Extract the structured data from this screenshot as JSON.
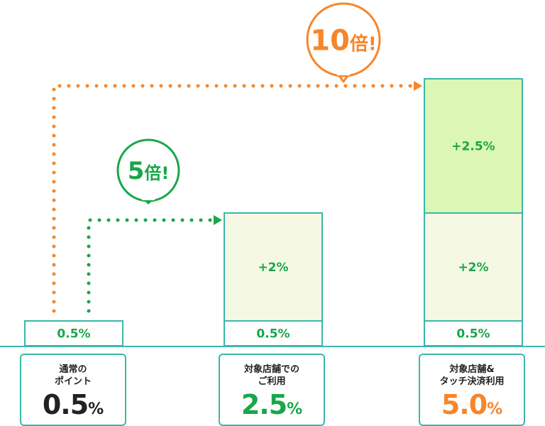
{
  "chart_data": {
    "type": "bar",
    "categories": [
      "通常のポイント",
      "対象店舗でのご利用",
      "対象店舗&タッチ決済利用"
    ],
    "segments": [
      [
        {
          "value": 0.5,
          "label": "0.5%"
        }
      ],
      [
        {
          "value": 0.5,
          "label": "0.5%"
        },
        {
          "value": 2.0,
          "label": "+2%"
        }
      ],
      [
        {
          "value": 0.5,
          "label": "0.5%"
        },
        {
          "value": 2.0,
          "label": "+2%"
        },
        {
          "value": 2.5,
          "label": "+2.5%"
        }
      ]
    ],
    "totals": [
      0.5,
      2.5,
      5.0
    ],
    "annotations": [
      {
        "from": 0,
        "to": 1,
        "text_num": "5",
        "text_unit": "倍!",
        "color": "#1aa64a"
      },
      {
        "from": 0,
        "to": 2,
        "text_num": "10",
        "text_unit": "倍!",
        "color": "#f7862a"
      }
    ]
  },
  "colors": {
    "bar_border": "#3bb7a8",
    "base_fill": "#ffffff",
    "mid_fill": "#f5f9e4",
    "top_fill": "#dcf7b5",
    "green": "#1aa64a",
    "orange": "#f7862a",
    "dark": "#222222"
  },
  "cards": [
    {
      "label": "通常の\nポイント",
      "value_num": "0.5",
      "value_unit": "%",
      "color": "#222222"
    },
    {
      "label": "対象店舗での\nご利用",
      "value_num": "2.5",
      "value_unit": "%",
      "color": "#1aa64a"
    },
    {
      "label": "対象店舗&\nタッチ決済利用",
      "value_num": "5.0",
      "value_unit": "%",
      "color": "#f7862a"
    }
  ]
}
